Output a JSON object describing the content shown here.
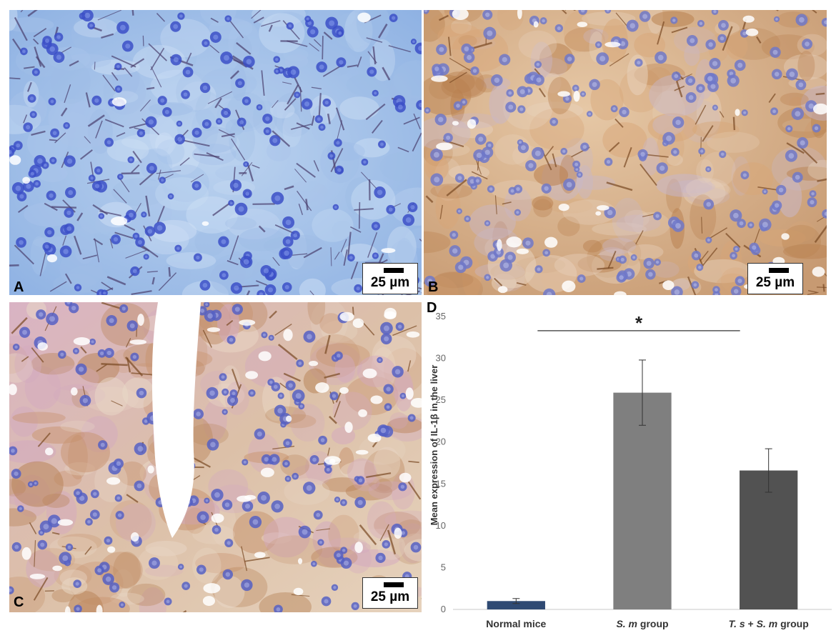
{
  "panels": [
    {
      "id": "A",
      "letter": "A",
      "scale_label": "25 µm",
      "stain": "blue"
    },
    {
      "id": "B",
      "letter": "B",
      "scale_label": "25 µm",
      "stain": "brown"
    },
    {
      "id": "C",
      "letter": "C",
      "scale_label": "25 µm",
      "stain": "brown-light"
    }
  ],
  "chart_panel_letter": "D",
  "chart_data": {
    "type": "bar",
    "categories": [
      "Normal mice",
      "S. m group",
      "T. s + S. m group"
    ],
    "category_parts": [
      [
        {
          "text": "Normal mice",
          "italic": false
        }
      ],
      [
        {
          "text": "S. m",
          "italic": true
        },
        {
          "text": " group",
          "italic": false
        }
      ],
      [
        {
          "text": "T. s",
          "italic": true
        },
        {
          "text": " + ",
          "italic": false
        },
        {
          "text": "S. m",
          "italic": true
        },
        {
          "text": " group",
          "italic": false
        }
      ]
    ],
    "values": [
      1.0,
      25.9,
      16.6
    ],
    "errors": [
      0.3,
      3.9,
      2.6
    ],
    "bar_colors": [
      "#2f4a73",
      "#7f7f7f",
      "#525252"
    ],
    "ylabel": "Mean expression of IL-1β in the liver",
    "xlabel": "",
    "ylim": [
      0,
      35
    ],
    "yticks": [
      0,
      5,
      10,
      15,
      20,
      25,
      30,
      35
    ],
    "significance": {
      "from": 0,
      "to": 2,
      "y": 33.3,
      "label": "*"
    },
    "grid": false
  }
}
